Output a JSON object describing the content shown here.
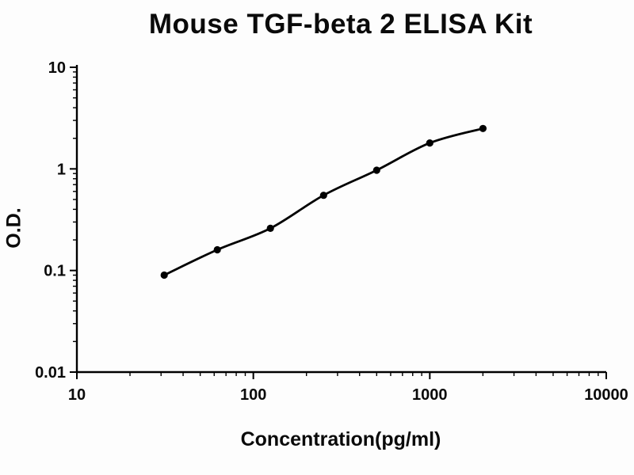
{
  "title": "Mouse TGF-beta 2 ELISA Kit",
  "chart_data": {
    "type": "line",
    "title": "Mouse TGF-beta 2 ELISA Kit",
    "xlabel": "Concentration(pg/ml)",
    "ylabel": "O.D.",
    "xscale": "log",
    "yscale": "log",
    "xlim": [
      10,
      10000
    ],
    "ylim": [
      0.01,
      10
    ],
    "x": [
      31.25,
      62.5,
      125,
      250,
      500,
      1000,
      2000
    ],
    "y": [
      0.09,
      0.16,
      0.26,
      0.55,
      0.97,
      1.8,
      2.5
    ],
    "xticks": [
      10,
      100,
      1000,
      10000
    ],
    "yticks": [
      0.01,
      0.1,
      1,
      10
    ],
    "xtick_labels": [
      "10",
      "100",
      "1000",
      "10000"
    ],
    "ytick_labels": [
      "0.01",
      "0.1",
      "1",
      "10"
    ],
    "grid": false,
    "legend_position": "none",
    "marker": "circle",
    "line_color": "#000000",
    "marker_color": "#000000",
    "background_color": "#fdfdfd"
  }
}
